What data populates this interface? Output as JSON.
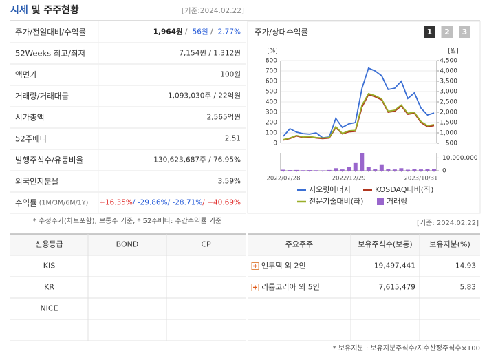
{
  "header": {
    "title_parts": [
      {
        "text": "시세",
        "color": "#2a5db0"
      },
      {
        "text": " 및 주주현황",
        "color": "#222222"
      }
    ],
    "date": "[기준:2024.02.22]"
  },
  "summary": {
    "rows": [
      {
        "label": "주가/전일대비/수익률",
        "parts": [
          {
            "text": "1,964원",
            "color": "#222222",
            "bold": true
          },
          {
            "text": " / ",
            "color": "#666666"
          },
          {
            "text": "-56원",
            "color": "#2b5fd9"
          },
          {
            "text": " / ",
            "color": "#666666"
          },
          {
            "text": "-2.77%",
            "color": "#2b5fd9"
          }
        ]
      },
      {
        "label": "52Weeks 최고/최저",
        "parts": [
          {
            "text": "7,154원 / 1,312원",
            "color": "#333333"
          }
        ]
      },
      {
        "label": "액면가",
        "parts": [
          {
            "text": "100원",
            "color": "#333333"
          }
        ]
      },
      {
        "label": "거래량/거래대금",
        "parts": [
          {
            "text": "1,093,030주 / 22억원",
            "color": "#333333"
          }
        ]
      },
      {
        "label": "시가총액",
        "parts": [
          {
            "text": "2,565억원",
            "color": "#333333"
          }
        ]
      },
      {
        "label": "52주베타",
        "parts": [
          {
            "text": "2.51",
            "color": "#333333"
          }
        ]
      },
      {
        "label": "발행주식수/유동비율",
        "parts": [
          {
            "text": "130,623,687주 / 76.95%",
            "color": "#333333"
          }
        ]
      },
      {
        "label": "외국인지분율",
        "parts": [
          {
            "text": "3.59%",
            "color": "#333333"
          }
        ]
      },
      {
        "label": "수익률",
        "note": " (1M/3M/6M/1Y)",
        "parts": [
          {
            "text": "+16.35%",
            "color": "#e0312f"
          },
          {
            "text": "/ -29.86%",
            "color": "#2b5fd9"
          },
          {
            "text": "/ -28.71%",
            "color": "#2b5fd9"
          },
          {
            "text": "/ +40.69%",
            "color": "#e0312f"
          }
        ]
      }
    ],
    "note": "* 수정주가(차트포함), 보통주 기준, * 52주베타: 주간수익률 기준"
  },
  "chart_data": {
    "type": "line",
    "title": "주가/상대수익률",
    "tabs": [
      "1",
      "2",
      "3"
    ],
    "y_label": "[%]",
    "y2_label": "[원]",
    "x": [
      "2022/02/28",
      null,
      null,
      null,
      null,
      null,
      null,
      null,
      null,
      null,
      "2022/12/29",
      null,
      null,
      null,
      null,
      null,
      null,
      null,
      null,
      null,
      null,
      "2023/10/31",
      null,
      null
    ],
    "ylim": [
      0,
      800
    ],
    "yticks": [
      0,
      100,
      200,
      300,
      400,
      500,
      600,
      700,
      800
    ],
    "y2lim": [
      500,
      4500
    ],
    "y2ticks": [
      500,
      {
        "value": 1000,
        "label": "1,000"
      },
      {
        "value": 1500,
        "label": "1,500"
      },
      {
        "value": 2000,
        "label": "2,000"
      },
      {
        "value": 2500,
        "label": "2,500"
      },
      {
        "value": 3000,
        "label": "3,000"
      },
      {
        "value": 3500,
        "label": "3,500"
      },
      {
        "value": 4000,
        "label": "4,000"
      },
      {
        "value": 4500,
        "label": "4,500"
      }
    ],
    "volume_lim": [
      0,
      14000000
    ],
    "volume_ticks": [
      0,
      {
        "value": 10000000,
        "label": "10,000,000"
      }
    ],
    "grid": true,
    "series": [
      {
        "name": "지오릿에너지",
        "color": "#3b6fd4",
        "axis": "y2",
        "values": [
          835,
          1200,
          1035,
          965,
          935,
          1000,
          765,
          800,
          1700,
          1265,
          1435,
          1500,
          3165,
          4135,
          4000,
          3765,
          3100,
          3165,
          3500,
          2665,
          2935,
          2200,
          1865,
          1964
        ]
      },
      {
        "name": "KOSDAQ대비(좌)",
        "color": "#b0361e",
        "axis": "y",
        "values": [
          30,
          45,
          70,
          55,
          60,
          50,
          45,
          50,
          150,
          90,
          110,
          115,
          350,
          470,
          450,
          420,
          300,
          310,
          360,
          280,
          290,
          200,
          160,
          170
        ]
      },
      {
        "name": "전문기술대비(좌)",
        "color": "#9aae2a",
        "axis": "y",
        "values": [
          35,
          50,
          75,
          60,
          65,
          55,
          50,
          55,
          160,
          95,
          120,
          125,
          370,
          480,
          460,
          430,
          310,
          320,
          370,
          290,
          300,
          210,
          170,
          180
        ]
      },
      {
        "name": "거래량",
        "color": "#9966cc",
        "axis": "volume",
        "values": [
          800000,
          500000,
          600000,
          400000,
          500000,
          400000,
          300000,
          600000,
          2000000,
          1000000,
          3000000,
          6000000,
          14000000,
          3000000,
          1500000,
          5000000,
          1500000,
          1000000,
          2000000,
          800000,
          1500000,
          1000000,
          1500000,
          1200000
        ]
      }
    ]
  },
  "credit": {
    "headers": [
      "신용등급",
      "BOND",
      "CP"
    ],
    "rows": [
      [
        "KIS",
        null,
        null
      ],
      [
        "KR",
        null,
        null
      ],
      [
        "NICE",
        null,
        null
      ],
      [
        null,
        null,
        null
      ]
    ]
  },
  "shareholders": {
    "date": "[기준: 2024.02.22]",
    "headers": [
      "주요주주",
      "보유주식수(보통)",
      "보유지분(%)"
    ],
    "rows": [
      [
        "엔투텍 외 2인",
        "19,497,441",
        "14.93"
      ],
      [
        "리튬코리아 외 5인",
        "7,615,479",
        "5.83"
      ],
      [
        null,
        null,
        null
      ],
      [
        null,
        null,
        null
      ]
    ],
    "footnote": "* 보유지분 : 보유지분주식수/지수산정주식수×100"
  }
}
